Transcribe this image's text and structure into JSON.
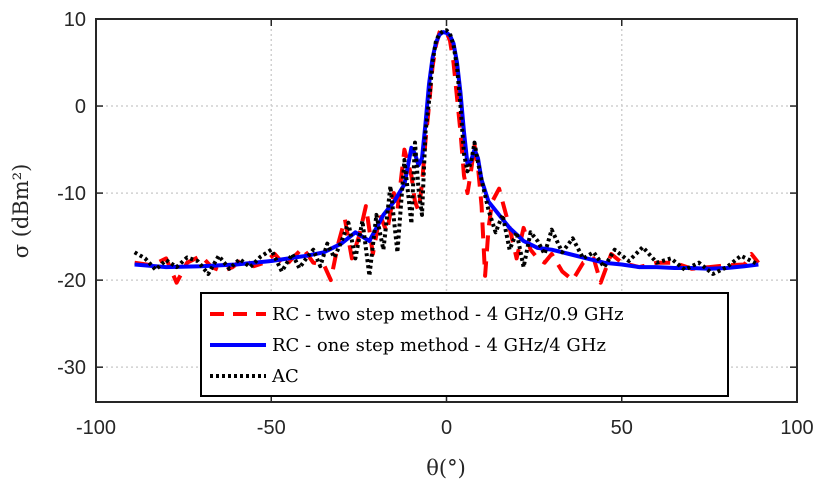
{
  "chart_data": {
    "type": "line",
    "xlabel": "θ(°)",
    "ylabel": "σ (dBm²)",
    "xlim": [
      -100,
      100
    ],
    "ylim": [
      -34,
      10
    ],
    "xticks": [
      -100,
      -50,
      0,
      50,
      100
    ],
    "yticks": [
      -30,
      -20,
      -10,
      0,
      10
    ],
    "xtick_labels": [
      "-100",
      "-50",
      "0",
      "50",
      "100"
    ],
    "ytick_labels": [
      "-30",
      "-20",
      "-10",
      "0",
      "10"
    ],
    "grid": true,
    "legend_position": "bottom-center",
    "series": [
      {
        "name": "RC - two step method - 4 GHz/0.9 GHz",
        "color": "#ff0000",
        "style": "dashed",
        "x": [
          -89,
          -84,
          -80,
          -77,
          -74,
          -70,
          -67,
          -64,
          -61,
          -58,
          -55,
          -52,
          -49,
          -46,
          -44,
          -41,
          -38,
          -35,
          -33,
          -31,
          -29,
          -27,
          -25,
          -23,
          -21,
          -19,
          -17,
          -15,
          -14,
          -12,
          -10,
          -9,
          -8,
          -7,
          -6,
          -5,
          -4,
          -3,
          -2,
          -1,
          0,
          1,
          2,
          3,
          4,
          5,
          6,
          7,
          8,
          9,
          10,
          11,
          12,
          13,
          15,
          17,
          18,
          20,
          22,
          24,
          26,
          28,
          30,
          33,
          36,
          39,
          42,
          44,
          47,
          50,
          55,
          60,
          65,
          70,
          75,
          80,
          85,
          87,
          89
        ],
        "values": [
          -18,
          -18.3,
          -17.5,
          -20.3,
          -18,
          -17.2,
          -18.5,
          -19,
          -18.5,
          -17.5,
          -18.4,
          -18,
          -17,
          -18.4,
          -17.5,
          -16.3,
          -18,
          -18.2,
          -20,
          -16,
          -13,
          -17.5,
          -15,
          -11.5,
          -17,
          -12.5,
          -14.5,
          -10,
          -12,
          -5,
          -8,
          -11,
          -12,
          -9,
          -4,
          0,
          4.5,
          7,
          8.5,
          8.6,
          8.5,
          7.5,
          5,
          1,
          -3,
          -8,
          -10,
          -7.5,
          -4.5,
          -7,
          -11.5,
          -19.5,
          -14,
          -11,
          -9.5,
          -12.5,
          -14,
          -17.5,
          -14,
          -16.5,
          -17.5,
          -18,
          -17,
          -19,
          -20,
          -18,
          -17.5,
          -20.3,
          -17,
          -18,
          -18.5,
          -18,
          -18,
          -18.7,
          -18.5,
          -18.3,
          -18.2,
          -17,
          -18
        ]
      },
      {
        "name": "RC - one step method - 4 GHz/4 GHz",
        "color": "#0000ff",
        "style": "solid",
        "x": [
          -89,
          -80,
          -70,
          -60,
          -50,
          -45,
          -40,
          -35,
          -30,
          -26,
          -22,
          -18,
          -15,
          -12,
          -10,
          -9,
          -8,
          -7,
          -6,
          -5,
          -4,
          -3,
          -2,
          -1,
          0,
          1,
          2,
          3,
          4,
          5,
          6,
          7,
          8,
          9,
          10,
          12,
          15,
          18,
          22,
          26,
          30,
          35,
          40,
          45,
          50,
          55,
          60,
          65,
          70,
          75,
          80,
          85,
          89
        ],
        "values": [
          -18.2,
          -18.5,
          -18.4,
          -18.2,
          -17.8,
          -17.5,
          -17.2,
          -16.8,
          -15.8,
          -14.5,
          -15.5,
          -12.5,
          -11,
          -9,
          -4.8,
          -5.5,
          -6.8,
          -6,
          -2,
          2.5,
          5.5,
          7.3,
          8.2,
          8.5,
          8.4,
          8.1,
          7.2,
          5,
          1.5,
          -3,
          -6.7,
          -6.3,
          -5,
          -6,
          -8.5,
          -11,
          -12.5,
          -14,
          -15.5,
          -16.3,
          -16.5,
          -17,
          -17.5,
          -18,
          -18.2,
          -18.5,
          -18.5,
          -18.6,
          -18.6,
          -18.7,
          -18.6,
          -18.4,
          -18.2
        ]
      },
      {
        "name": "AC",
        "color": "#000000",
        "style": "dotted",
        "x": [
          -89,
          -86,
          -83,
          -80,
          -77,
          -74,
          -71,
          -68,
          -65,
          -62,
          -59,
          -56,
          -53,
          -50,
          -47,
          -44,
          -42,
          -40,
          -38,
          -36,
          -34,
          -32,
          -30,
          -28,
          -26,
          -24,
          -22,
          -20,
          -18,
          -16,
          -14,
          -12,
          -10,
          -9,
          -8,
          -7,
          -6,
          -5,
          -4,
          -3,
          -2,
          -1,
          0,
          1,
          2,
          3,
          4,
          5,
          6,
          7,
          8,
          9,
          10,
          12,
          14,
          16,
          18,
          20,
          22,
          24,
          26,
          28,
          30,
          33,
          36,
          39,
          42,
          45,
          48,
          52,
          56,
          60,
          64,
          68,
          72,
          76,
          80,
          84,
          89
        ],
        "values": [
          -16.8,
          -17.5,
          -18.8,
          -17.7,
          -18.5,
          -17.4,
          -17.8,
          -19.3,
          -17.2,
          -18.7,
          -17.6,
          -18.5,
          -17.3,
          -16.5,
          -19,
          -17,
          -18.6,
          -17.5,
          -16.5,
          -18.4,
          -15.8,
          -17.4,
          -15.6,
          -13.4,
          -17.5,
          -13.2,
          -19.5,
          -12.5,
          -16.5,
          -9.2,
          -16.8,
          -6.2,
          -13.5,
          -4.2,
          -9.5,
          -12.5,
          -3,
          0.5,
          5,
          7.5,
          8.3,
          8.6,
          8.7,
          8.3,
          7,
          4.5,
          0,
          -5.5,
          -7.5,
          -6.5,
          -4.2,
          -6.5,
          -8.5,
          -12,
          -14.5,
          -12.5,
          -16.5,
          -14.5,
          -18.5,
          -14.5,
          -15.5,
          -17,
          -14.2,
          -16.8,
          -15.2,
          -17.5,
          -16.8,
          -18.5,
          -16.5,
          -17.8,
          -16.2,
          -18,
          -17.5,
          -18.8,
          -18,
          -19.3,
          -18.5,
          -17.2,
          -18.2
        ]
      }
    ]
  }
}
